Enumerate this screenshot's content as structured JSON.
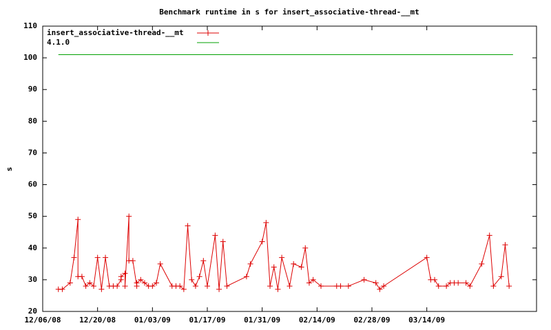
{
  "chart_data": {
    "type": "line",
    "title": "Benchmark runtime in s for insert_associative-thread-__mt",
    "y_label": "s",
    "xlim": [
      "12/06/08",
      "04/11/09"
    ],
    "xticks": [
      "12/06/08",
      "12/20/08",
      "01/03/09",
      "01/17/09",
      "01/31/09",
      "02/14/09",
      "02/28/09",
      "03/14/09"
    ],
    "ylim": [
      20,
      110
    ],
    "yticks": [
      20,
      30,
      40,
      50,
      60,
      70,
      80,
      90,
      100,
      110
    ],
    "legend": "top-left",
    "series": [
      {
        "name": "insert_associative-thread-__mt",
        "color": "#dd0000",
        "marker": "+",
        "x": [
          "12/10/08",
          "12/11/08",
          "12/13/08",
          "12/14/08",
          "12/15/08",
          "12/15/08",
          "12/16/08",
          "12/17/08",
          "12/18/08",
          "12/19/08",
          "12/20/08",
          "12/21/08",
          "12/22/08",
          "12/23/08",
          "12/24/08",
          "12/25/08",
          "12/26/08",
          "12/26/08",
          "12/27/08",
          "12/27/08",
          "12/28/08",
          "12/28/08",
          "12/29/08",
          "12/30/08",
          "12/30/08",
          "12/31/08",
          "01/01/09",
          "01/02/09",
          "01/03/09",
          "01/04/09",
          "01/05/09",
          "01/08/09",
          "01/09/09",
          "01/10/09",
          "01/11/09",
          "01/12/09",
          "01/13/09",
          "01/14/09",
          "01/15/09",
          "01/16/09",
          "01/17/09",
          "01/19/09",
          "01/20/09",
          "01/21/09",
          "01/22/09",
          "01/27/09",
          "01/28/09",
          "01/31/09",
          "02/01/09",
          "02/02/09",
          "02/03/09",
          "02/04/09",
          "02/05/09",
          "02/07/09",
          "02/08/09",
          "02/10/09",
          "02/11/09",
          "02/12/09",
          "02/13/09",
          "02/15/09",
          "02/19/09",
          "02/20/09",
          "02/22/09",
          "02/26/09",
          "03/01/09",
          "03/02/09",
          "03/03/09",
          "03/14/09",
          "03/15/09",
          "03/16/09",
          "03/17/09",
          "03/19/09",
          "03/20/09",
          "03/21/09",
          "03/22/09",
          "03/24/09",
          "03/25/09",
          "03/28/09",
          "03/30/09",
          "03/31/09",
          "04/02/09",
          "04/03/09",
          "04/04/09"
        ],
        "values": [
          27,
          27,
          29,
          37,
          49,
          31,
          31,
          28,
          29,
          28,
          37,
          27,
          37,
          28,
          28,
          28,
          30,
          31,
          32,
          28,
          50,
          36,
          36,
          28,
          29,
          30,
          29,
          28,
          28,
          29,
          35,
          28,
          28,
          28,
          27,
          47,
          30,
          28,
          31,
          36,
          28,
          44,
          27,
          42,
          28,
          31,
          35,
          42,
          48,
          28,
          34,
          27,
          37,
          28,
          35,
          34,
          40,
          29,
          30,
          28,
          28,
          28,
          28,
          30,
          29,
          27,
          28,
          37,
          30,
          30,
          28,
          28,
          29,
          29,
          29,
          29,
          28,
          35,
          44,
          28,
          31,
          41,
          28
        ]
      },
      {
        "name": "4.1.0",
        "color": "#00a000",
        "x": [
          "12/10/08",
          "04/05/09"
        ],
        "values": [
          101,
          101
        ]
      }
    ]
  }
}
